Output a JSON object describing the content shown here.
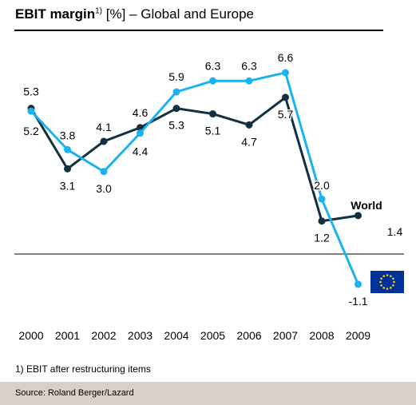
{
  "title": {
    "bold": "EBIT margin",
    "sup": "1)",
    "rest": " [%] – Global and Europe"
  },
  "footnote": "1) EBIT after restructuring items",
  "source": "Source: Roland Berger/Lazard",
  "colors": {
    "world": "#123040",
    "europe": "#1ab3ef",
    "source_bg": "#d9d1c7",
    "eu_flag": "#003399",
    "eu_stars": "#ffcc00"
  },
  "chart_data": {
    "type": "line",
    "categories": [
      "2000",
      "2001",
      "2002",
      "2003",
      "2004",
      "2005",
      "2006",
      "2007",
      "2008",
      "2009"
    ],
    "series": [
      {
        "name": "World",
        "values": [
          5.3,
          3.1,
          4.1,
          4.6,
          5.3,
          5.1,
          4.7,
          5.7,
          1.2,
          1.4
        ]
      },
      {
        "name": "",
        "legend_icon": "eu-flag",
        "values": [
          5.2,
          3.8,
          3.0,
          4.4,
          5.9,
          6.3,
          6.3,
          6.6,
          2.0,
          -1.1
        ]
      }
    ],
    "data_labels": [
      [
        "5.3",
        "3.1",
        "4.1",
        "4.6",
        "5.3",
        "5.1",
        "4.7",
        "5.7",
        "1.2",
        "1.4"
      ],
      [
        "5.2",
        "3.8",
        "3.0",
        "4.4",
        "5.9",
        "6.3",
        "6.3",
        "6.6",
        "2.0",
        "-1.1"
      ]
    ],
    "ylim": [
      -1.1,
      6.6
    ],
    "zero_line": true,
    "grid": false,
    "xlabel": "",
    "ylabel": ""
  }
}
